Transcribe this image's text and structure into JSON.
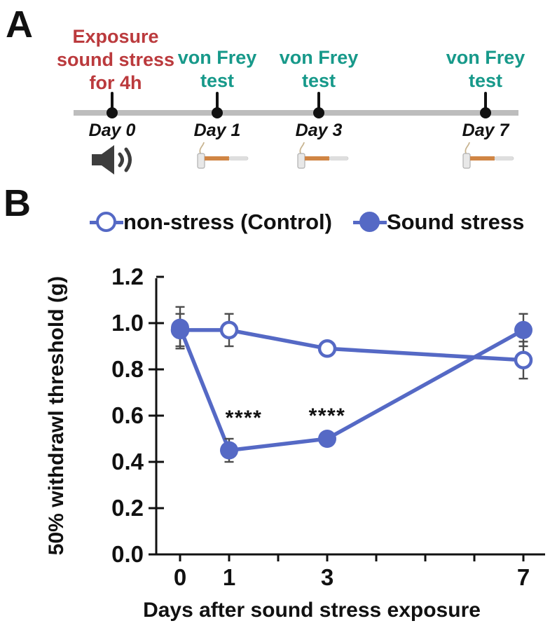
{
  "panelA": {
    "label": "A",
    "events": [
      {
        "annotation": "Exposure\nsound stress\nfor 4h",
        "type": "stress",
        "day_label": "Day 0",
        "icon": "speaker"
      },
      {
        "annotation": "von Frey\ntest",
        "type": "test",
        "day_label": "Day 1",
        "icon": "von-frey-filament"
      },
      {
        "annotation": "von Frey\ntest",
        "type": "test",
        "day_label": "Day 3",
        "icon": "von-frey-filament"
      },
      {
        "annotation": "von Frey\ntest",
        "type": "test",
        "day_label": "Day 7",
        "icon": "von-frey-filament"
      }
    ],
    "colors": {
      "stress_text": "#bb3a3d",
      "test_text": "#17998a",
      "timeline_bar": "#bdbdbd",
      "marker": "#111111",
      "speaker_icon": "#3d3d3d",
      "filament_orange": "#d08544"
    }
  },
  "panelB": {
    "label": "B",
    "legend": [
      {
        "label": "non-stress (Control)",
        "marker": "open-circle"
      },
      {
        "label": "Sound stress",
        "marker": "filled-circle"
      }
    ]
  },
  "chart_data": {
    "type": "line",
    "title": "",
    "xlabel": "Days after sound stress exposure",
    "ylabel": "50% withdrawl threshold (g)",
    "x": [
      0,
      1,
      3,
      7
    ],
    "x_axis_ticks": [
      0,
      1,
      2,
      3,
      4,
      5,
      6,
      7
    ],
    "x_labeled_ticks": [
      0,
      1,
      3,
      7
    ],
    "xlim": [
      0,
      7
    ],
    "ylim": [
      0.0,
      1.2
    ],
    "y_ticks": [
      0.0,
      0.2,
      0.4,
      0.6,
      0.8,
      1.0,
      1.2
    ],
    "grid": false,
    "legend_position": "top",
    "line_color": "#5569c5",
    "error_bar_color": "#4c4c4c",
    "series": [
      {
        "name": "non-stress (Control)",
        "marker": "open",
        "values": [
          0.97,
          0.97,
          0.89,
          0.84
        ],
        "errors": [
          0.07,
          0.07,
          0.03,
          0.08
        ]
      },
      {
        "name": "Sound stress",
        "marker": "filled",
        "values": [
          0.98,
          0.45,
          0.5,
          0.97
        ],
        "errors": [
          0.09,
          0.05,
          0.02,
          0.07
        ]
      }
    ],
    "annotations": [
      {
        "text": "****",
        "x": 1.3,
        "y": 0.56
      },
      {
        "text": "****",
        "x": 3.0,
        "y": 0.57
      }
    ]
  }
}
